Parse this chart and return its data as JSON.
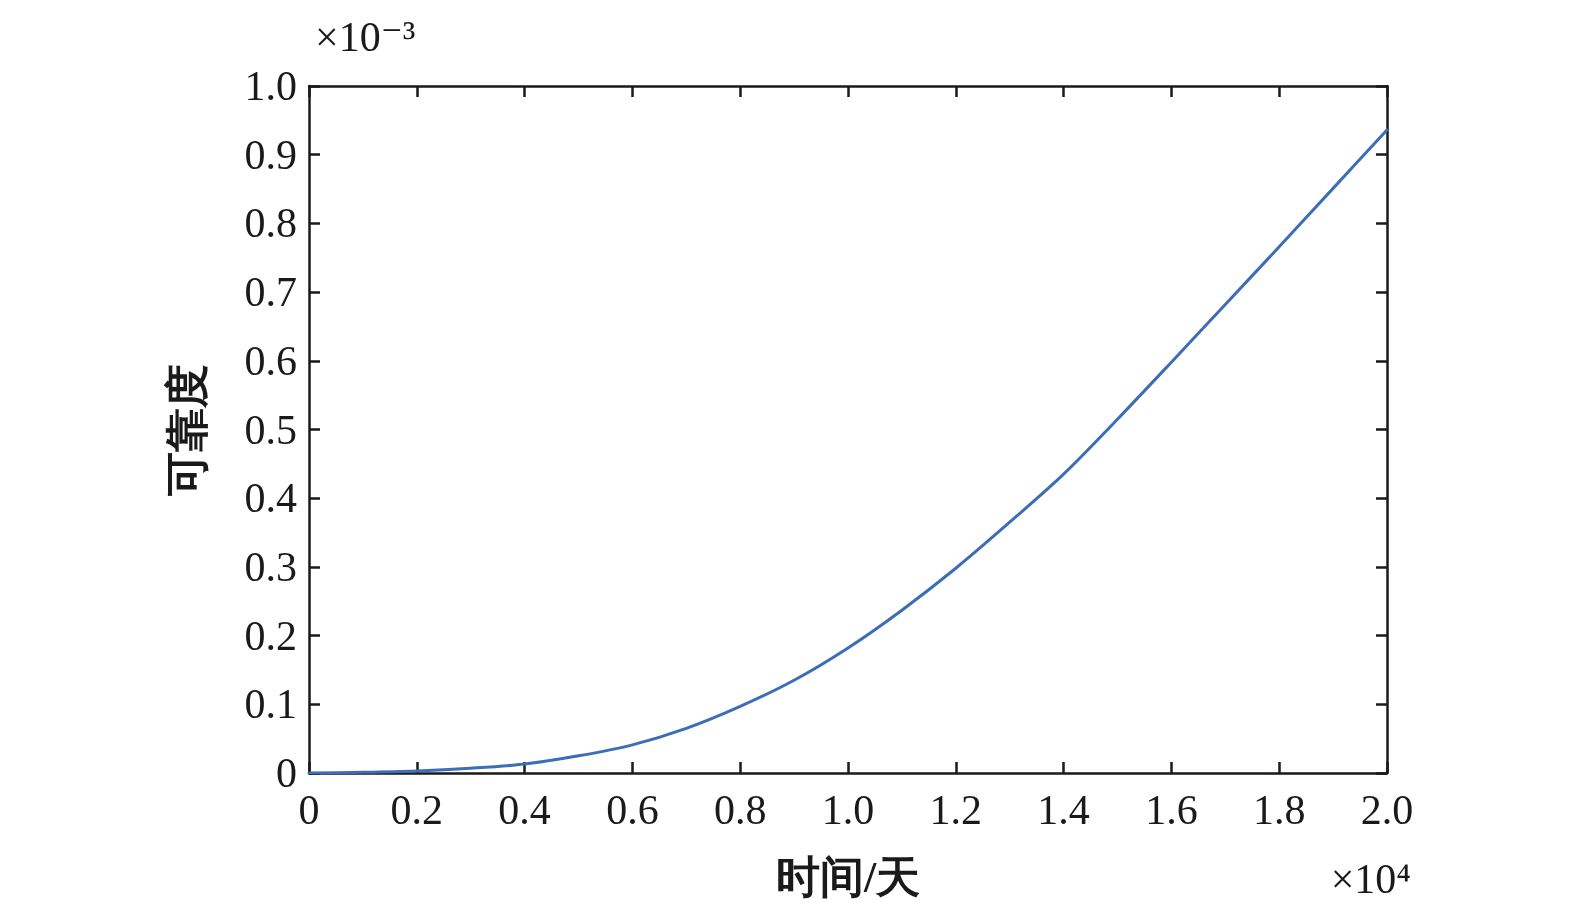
{
  "chart_data": {
    "type": "line",
    "xlabel": "时间/天",
    "ylabel": "可靠度",
    "annotations": [
      "×10⁻³",
      "×10⁴"
    ],
    "x": [
      0,
      0.1,
      0.2,
      0.3,
      0.4,
      0.5,
      0.6,
      0.7,
      0.8,
      0.9,
      1.0,
      1.1,
      1.2,
      1.3,
      1.4,
      1.5,
      1.6,
      1.7,
      1.8,
      1.9,
      2.0
    ],
    "series": [
      {
        "color": "#3d6db5",
        "values": [
          0,
          0.001,
          0.003,
          0.007,
          0.013,
          0.025,
          0.041,
          0.065,
          0.097,
          0.135,
          0.182,
          0.237,
          0.298,
          0.365,
          0.435,
          0.515,
          0.598,
          0.682,
          0.766,
          0.851,
          0.936
        ]
      }
    ],
    "xlim": [
      0,
      2
    ],
    "xticks": [
      0,
      0.2,
      0.4,
      0.6,
      0.8,
      {
        "value": 1,
        "label": "1.0"
      },
      1.2,
      1.4,
      1.6,
      1.8,
      {
        "value": 2,
        "label": "2.0"
      }
    ],
    "ylim": [
      0,
      1
    ],
    "yticks": [
      0,
      0.1,
      0.2,
      0.3,
      0.4,
      0.5,
      0.6,
      0.7,
      0.8,
      0.9,
      {
        "value": 1,
        "label": "1.0"
      }
    ],
    "line_style": "solid"
  }
}
